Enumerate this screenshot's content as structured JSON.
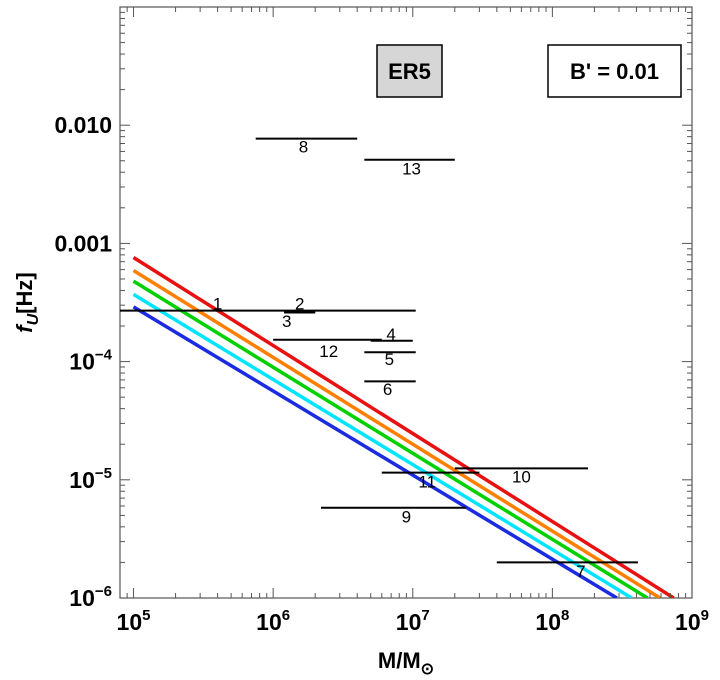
{
  "chart_data": {
    "type": "line",
    "xscale": "log",
    "yscale": "log",
    "xlim": [
      80000,
      1000000000
    ],
    "ylim": [
      1e-06,
      0.1
    ],
    "xlabel": "M/M_⊙",
    "ylabel": "f_U[Hz]",
    "x_ticks": [
      {
        "value": 100000,
        "base": "10",
        "exp": "5"
      },
      {
        "value": 1000000,
        "base": "10",
        "exp": "6"
      },
      {
        "value": 10000000,
        "base": "10",
        "exp": "7"
      },
      {
        "value": 100000000,
        "base": "10",
        "exp": "8"
      },
      {
        "value": 1000000000,
        "base": "10",
        "exp": "9"
      }
    ],
    "y_ticks": [
      {
        "value": 1e-06,
        "base": "10",
        "exp": "−6",
        "text": ""
      },
      {
        "value": 1e-05,
        "base": "10",
        "exp": "−5",
        "text": ""
      },
      {
        "value": 0.0001,
        "base": "10",
        "exp": "−4",
        "text": ""
      },
      {
        "value": 0.001,
        "base": "",
        "exp": "",
        "text": "0.001"
      },
      {
        "value": 0.01,
        "base": "",
        "exp": "",
        "text": "0.010"
      }
    ],
    "boxes": [
      {
        "text": "ER5",
        "fill": "#d6d6d6"
      },
      {
        "text": "B' = 0.01",
        "fill": "#ffffff"
      }
    ],
    "series": [
      {
        "color": "#e81010",
        "x": [
          100000,
          740000000
        ],
        "y": [
          0.00076,
          1e-06
        ]
      },
      {
        "color": "#ff8000",
        "x": [
          100000,
          590000000
        ],
        "y": [
          0.00059,
          1e-06
        ]
      },
      {
        "color": "#00d000",
        "x": [
          100000,
          480000000
        ],
        "y": [
          0.00048,
          1e-06
        ]
      },
      {
        "color": "#00e5ff",
        "x": [
          100000,
          370000000
        ],
        "y": [
          0.00037,
          1e-06
        ]
      },
      {
        "color": "#1a2be0",
        "x": [
          100000,
          290000000
        ],
        "y": [
          0.00029,
          1e-06
        ]
      }
    ],
    "segments": [
      {
        "label": "1",
        "x": [
          80000,
          10500000
        ],
        "y": 0.00027,
        "label_x": 400000,
        "label_y": 0.00031
      },
      {
        "label": "2",
        "x": [
          1200000,
          2000000
        ],
        "y": 0.00026,
        "label_x": 1550000,
        "label_y": 0.00031
      },
      {
        "label": "3",
        "x": [
          1200000,
          2000000
        ],
        "y": 0.00026,
        "label_x": 1250000,
        "label_y": 0.00022
      },
      {
        "label": "4",
        "x": [
          5000000,
          10000000
        ],
        "y": 0.00015,
        "label_x": 7000000,
        "label_y": 0.000172
      },
      {
        "label": "5",
        "x": [
          4500000,
          10500000
        ],
        "y": 0.00012,
        "label_x": 6800000,
        "label_y": 0.000105
      },
      {
        "label": "6",
        "x": [
          4500000,
          10500000
        ],
        "y": 6.8e-05,
        "label_x": 6600000,
        "label_y": 5.85e-05
      },
      {
        "label": "7",
        "x": [
          40000000,
          410000000
        ],
        "y": 2e-06,
        "label_x": 160000000,
        "label_y": 1.7e-06
      },
      {
        "label": "8",
        "x": [
          750000,
          4000000
        ],
        "y": 0.0077,
        "label_x": 1650000,
        "label_y": 0.0066
      },
      {
        "label": "9",
        "x": [
          2200000,
          24000000
        ],
        "y": 5.8e-06,
        "label_x": 9000000,
        "label_y": 4.9e-06
      },
      {
        "label": "10",
        "x": [
          20000000,
          180000000
        ],
        "y": 1.25e-05,
        "label_x": 60000000,
        "label_y": 1.07e-05
      },
      {
        "label": "11",
        "x": [
          6000000,
          30000000
        ],
        "y": 1.15e-05,
        "label_x": 12700000,
        "label_y": 9.7e-06
      },
      {
        "label": "12",
        "x": [
          1000000,
          6000000
        ],
        "y": 0.000153,
        "label_x": 2500000,
        "label_y": 0.000123
      },
      {
        "label": "13",
        "x": [
          4500000,
          20000000
        ],
        "y": 0.0051,
        "label_x": 9800000,
        "label_y": 0.0043
      }
    ]
  }
}
